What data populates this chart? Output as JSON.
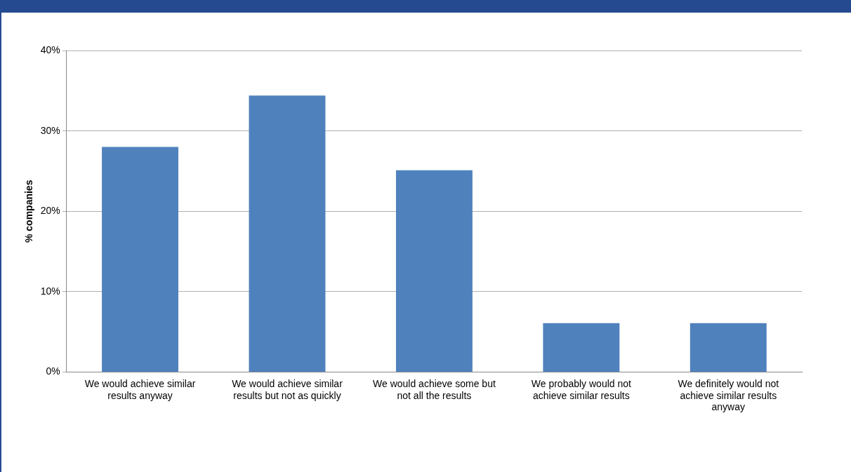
{
  "chart_data": {
    "type": "bar",
    "ylabel": "% companies",
    "categories": [
      "We would achieve similar results anyway",
      "We would achieve similar results but not as quickly",
      "We would achieve some but not all the results",
      "We probably would not achieve similar results",
      "We definitely would not achieve similar results anyway"
    ],
    "values": [
      28.0,
      34.4,
      25.1,
      6.1,
      6.1
    ],
    "color": "#4f81bd",
    "ylim": [
      0,
      40
    ],
    "yticks": [
      {
        "value": 0,
        "label": "0%"
      },
      {
        "value": 10,
        "label": "10%"
      },
      {
        "value": 20,
        "label": "20%"
      },
      {
        "value": 30,
        "label": "30%"
      },
      {
        "value": 40,
        "label": "40%"
      }
    ],
    "grid": "y",
    "legend": false
  }
}
